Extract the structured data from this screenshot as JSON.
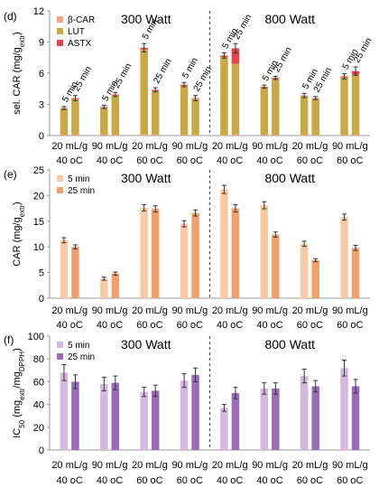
{
  "categories_line1": [
    "20 mL/g",
    "90 mL/g",
    "20 mL/g",
    "90 mL/g",
    "20 mL/g",
    "90 mL/g",
    "20 mL/g",
    "90 mL/g"
  ],
  "categories_line2": [
    "40 oC",
    "40 oC",
    "60 oC",
    "60 oC",
    "40 oC",
    "40 oC",
    "60 oC",
    "60 oC"
  ],
  "time_labels": [
    "5 min",
    "25 min"
  ],
  "chart_data": [
    {
      "type": "bar",
      "stacked": true,
      "panel": "(d)",
      "ylabel": "sel. CAR (mg/g",
      "ylabel_sub": "extr",
      "ylabel_end": ")",
      "ylim": [
        0,
        12
      ],
      "yticks": [
        0,
        3,
        6,
        9,
        12
      ],
      "groups": [
        "300 Watt",
        "800 Watt"
      ],
      "legend": {
        "position": "top-left",
        "entries": [
          "β-CAR",
          "LUT",
          "ASTX"
        ]
      },
      "colors": {
        "β-CAR": "#f4a582",
        "LUT": "#c9a845",
        "ASTX": "#e8414b"
      },
      "series": [
        {
          "name": "β-CAR",
          "values": [
            [
              0.05,
              0.05
            ],
            [
              0.05,
              0.05
            ],
            [
              0.1,
              0.1
            ],
            [
              0.05,
              0.05
            ],
            [
              0.05,
              0.1
            ],
            [
              0.05,
              0.05
            ],
            [
              0.05,
              0.05
            ],
            [
              0.05,
              0.05
            ]
          ]
        },
        {
          "name": "LUT",
          "values": [
            [
              2.55,
              3.45
            ],
            [
              2.65,
              3.8
            ],
            [
              8.2,
              4.2
            ],
            [
              4.75,
              3.5
            ],
            [
              7.5,
              6.8
            ],
            [
              4.6,
              5.4
            ],
            [
              3.75,
              3.5
            ],
            [
              5.55,
              5.8
            ]
          ]
        },
        {
          "name": "ASTX",
          "values": [
            [
              0.05,
              0.1
            ],
            [
              0.05,
              0.1
            ],
            [
              0.15,
              0.1
            ],
            [
              0.1,
              0.05
            ],
            [
              0.15,
              1.5
            ],
            [
              0.05,
              0.1
            ],
            [
              0.05,
              0.05
            ],
            [
              0.1,
              0.35
            ]
          ]
        }
      ],
      "errors": [
        [
          0.15,
          0.25
        ],
        [
          0.15,
          0.2
        ],
        [
          0.4,
          0.2
        ],
        [
          0.2,
          0.25
        ],
        [
          0.25,
          0.45
        ],
        [
          0.15,
          0.15
        ],
        [
          0.2,
          0.15
        ],
        [
          0.25,
          0.4
        ]
      ],
      "show_time_labels": true
    },
    {
      "type": "bar",
      "panel": "(e)",
      "ylabel": "CAR (mg/g",
      "ylabel_sub": "extr",
      "ylabel_end": ")",
      "ylim": [
        0,
        25
      ],
      "yticks": [
        0,
        5,
        10,
        15,
        20,
        25
      ],
      "groups": [
        "300 Watt",
        "800 Watt"
      ],
      "legend": {
        "position": "top-left",
        "entries": [
          "5 min",
          "25 min"
        ]
      },
      "colors": {
        "5 min": "#f9c9a4",
        "25 min": "#f0a068"
      },
      "series": [
        {
          "name": "5 min",
          "values": [
            11.3,
            3.8,
            17.6,
            14.5,
            21.2,
            18.1,
            10.6,
            15.8
          ]
        },
        {
          "name": "25 min",
          "values": [
            10.0,
            4.8,
            17.4,
            16.6,
            17.5,
            12.4,
            7.4,
            9.8
          ]
        }
      ],
      "errors": [
        [
          0.5,
          0.4
        ],
        [
          0.3,
          0.3
        ],
        [
          0.6,
          0.6
        ],
        [
          0.6,
          0.6
        ],
        [
          0.8,
          0.7
        ],
        [
          0.7,
          0.5
        ],
        [
          0.5,
          0.3
        ],
        [
          0.6,
          0.5
        ]
      ]
    },
    {
      "type": "bar",
      "panel": "(f)",
      "ylabel": "IC",
      "ylabel_sub": "50",
      "ylabel_end": " (mg",
      "ylabel_sub2": "extr",
      "ylabel_end2": "/mg",
      "ylabel_sub3": "DPPH",
      "ylabel_end3": ")",
      "ylim": [
        0,
        100
      ],
      "yticks": [
        0,
        20,
        40,
        60,
        80,
        100
      ],
      "groups": [
        "300 Watt",
        "800 Watt"
      ],
      "legend": {
        "position": "top-left",
        "entries": [
          "5 min",
          "25 min"
        ]
      },
      "colors": {
        "5 min": "#d4b8e0",
        "25 min": "#9b6bb8"
      },
      "series": [
        {
          "name": "5 min",
          "values": [
            68,
            58,
            51,
            61,
            37,
            54,
            65,
            72
          ]
        },
        {
          "name": "25 min",
          "values": [
            60,
            59,
            52,
            66,
            50,
            54,
            56,
            56
          ]
        }
      ],
      "errors": [
        [
          7,
          6
        ],
        [
          6,
          6
        ],
        [
          4,
          5
        ],
        [
          6,
          6
        ],
        [
          3,
          5
        ],
        [
          5,
          5
        ],
        [
          6,
          5
        ],
        [
          7,
          6
        ]
      ]
    }
  ]
}
